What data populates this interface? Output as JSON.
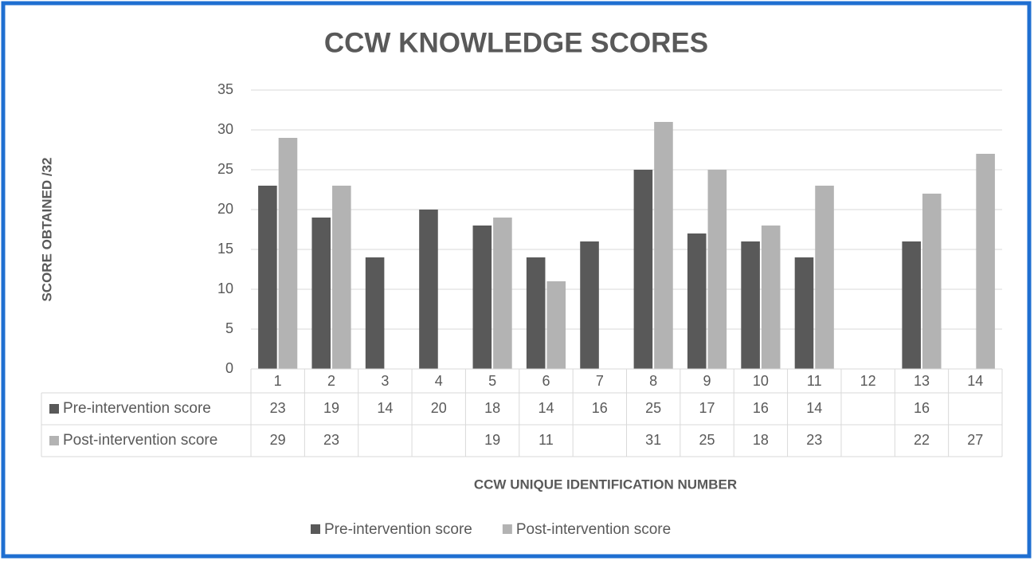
{
  "chart_data": {
    "type": "bar",
    "title": "CCW KNOWLEDGE SCORES",
    "x_label": "CCW UNIQUE IDENTIFICATION NUMBER",
    "y_label": "SCORE OBTAINED /32",
    "categories": [
      "1",
      "2",
      "3",
      "4",
      "5",
      "6",
      "7",
      "8",
      "9",
      "10",
      "11",
      "12",
      "13",
      "14"
    ],
    "series": [
      {
        "name": "Pre-intervention score",
        "color": "#595959",
        "values": [
          23,
          19,
          14,
          20,
          18,
          14,
          16,
          25,
          17,
          16,
          14,
          null,
          16,
          null
        ]
      },
      {
        "name": "Post-intervention score",
        "color": "#b3b3b3",
        "values": [
          29,
          23,
          null,
          null,
          19,
          11,
          null,
          31,
          25,
          18,
          23,
          null,
          22,
          27
        ]
      }
    ],
    "ylim": [
      0,
      35
    ],
    "yticks": [
      0,
      5,
      10,
      15,
      20,
      25,
      30,
      35
    ],
    "grid": true,
    "legend": "bottom",
    "data_table": true
  }
}
